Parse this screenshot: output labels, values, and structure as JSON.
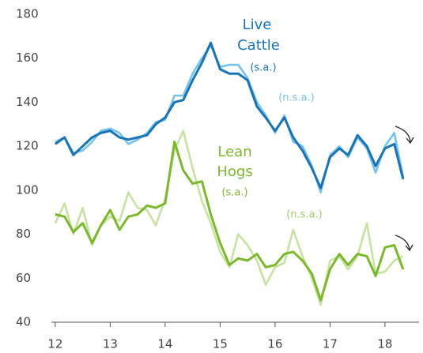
{
  "chart_data": {
    "type": "line",
    "x": [
      12,
      12.17,
      12.33,
      12.5,
      12.67,
      12.83,
      13,
      13.17,
      13.33,
      13.5,
      13.67,
      13.83,
      14,
      14.17,
      14.33,
      14.5,
      14.67,
      14.83,
      15,
      15.17,
      15.33,
      15.5,
      15.67,
      15.83,
      16,
      16.17,
      16.33,
      16.5,
      16.67,
      16.83,
      17,
      17.17,
      17.33,
      17.5,
      17.67,
      17.83,
      18,
      18.17,
      18.33
    ],
    "series": [
      {
        "name": "Lean Hogs (n.s.a.)",
        "color": "#c8e2a0",
        "values": [
          85,
          94,
          80,
          92,
          75,
          84,
          88,
          86,
          99,
          92,
          91,
          84,
          96,
          118,
          127,
          110,
          95,
          85,
          72,
          65,
          80,
          75,
          68,
          57,
          65,
          67,
          82,
          70,
          60,
          48,
          68,
          70,
          64,
          70,
          85,
          62,
          63,
          68,
          70
        ]
      },
      {
        "name": "Lean Hogs (s.a.)",
        "color": "#7aba2a",
        "values": [
          89,
          88,
          81,
          85,
          76,
          84,
          91,
          82,
          88,
          89,
          93,
          92,
          94,
          122,
          109,
          103,
          104,
          89,
          76,
          66,
          69,
          68,
          71,
          65,
          66,
          71,
          72,
          68,
          62,
          50,
          64,
          71,
          66,
          71,
          70,
          61,
          74,
          75,
          64
        ]
      },
      {
        "name": "Live Cattle (n.s.a.)",
        "color": "#74c3ec",
        "values": [
          122,
          124,
          117,
          118,
          122,
          127,
          128,
          126,
          121,
          123,
          126,
          131,
          132,
          143,
          143,
          153,
          160,
          166,
          156,
          157,
          157,
          151,
          140,
          134,
          126,
          134,
          122,
          120,
          111,
          99,
          116,
          120,
          115,
          124,
          119,
          108,
          120,
          126,
          106
        ]
      },
      {
        "name": "Live Cattle (s.a.)",
        "color": "#1874b8",
        "values": [
          121,
          124,
          116,
          120,
          124,
          126,
          127,
          124,
          123,
          124,
          125,
          130,
          133,
          140,
          141,
          150,
          158,
          167,
          155,
          153,
          153,
          150,
          138,
          133,
          127,
          133,
          124,
          118,
          110,
          101,
          115,
          119,
          116,
          125,
          120,
          111,
          119,
          121,
          105
        ]
      }
    ],
    "annotations": [
      {
        "text": "Live",
        "color": "#1874b8"
      },
      {
        "text": "Cattle",
        "color": "#1874b8"
      },
      {
        "text": "(s.a.)",
        "color": "#1874b8"
      },
      {
        "text": "(n.s.a.)",
        "color": "#74c3ec"
      },
      {
        "text": "Lean",
        "color": "#7aba2a"
      },
      {
        "text": "Hogs",
        "color": "#7aba2a"
      },
      {
        "text": "(s.a.)",
        "color": "#7aba2a"
      },
      {
        "text": "(n.s.a.)",
        "color": "#9fcc6a"
      }
    ],
    "xlim": [
      11.93,
      18.62
    ],
    "xticks": [
      12,
      13,
      14,
      15,
      16,
      17,
      18
    ],
    "ylim": [
      40,
      180
    ],
    "yticks": [
      40,
      60,
      80,
      100,
      120,
      140,
      160,
      180
    ]
  }
}
